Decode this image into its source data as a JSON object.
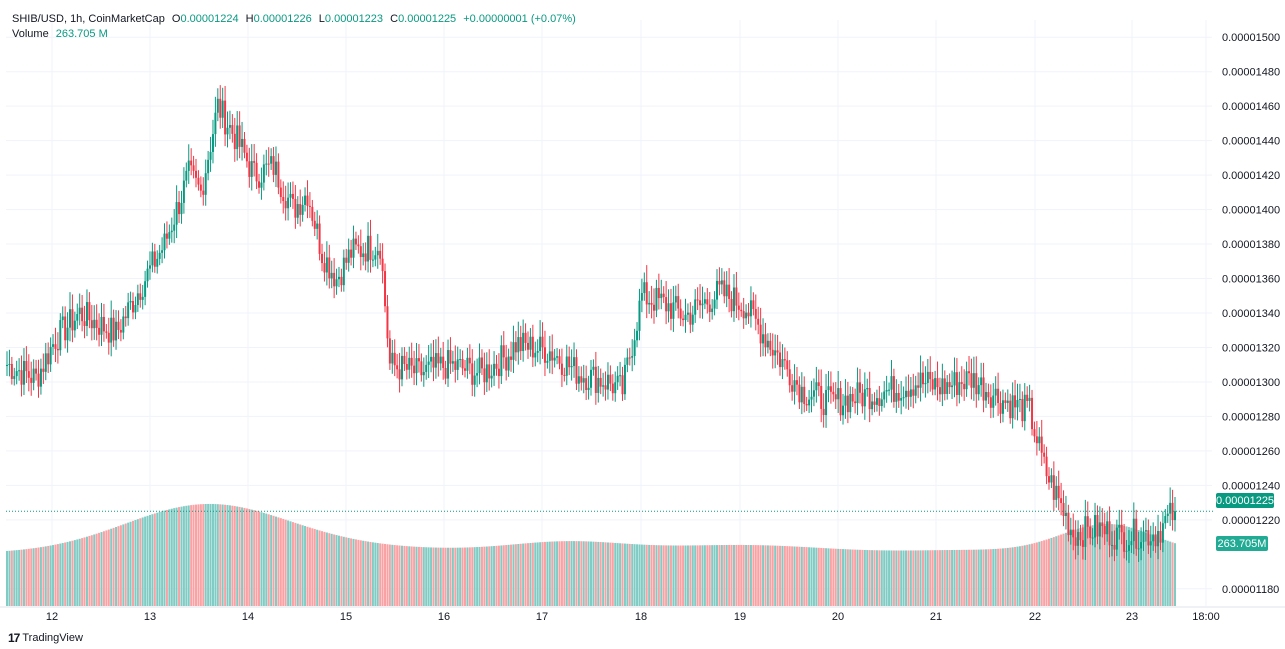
{
  "header": {
    "symbol": "SHIB/USD, 1h, CoinMarketCap",
    "open_label": "O",
    "open": "0.00001224",
    "high_label": "H",
    "high": "0.00001226",
    "low_label": "L",
    "low": "0.00001223",
    "close_label": "C",
    "close": "0.00001225",
    "change": "+0.00000001 (+0.07%)",
    "volume_label": "Volume",
    "volume": "263.705 M"
  },
  "badges": {
    "price": "0.00001225",
    "volume": "263.705M"
  },
  "brand": {
    "name": "TradingView"
  },
  "colors": {
    "up": "#089981",
    "down": "#f23645",
    "vol_up": "#80cbc4",
    "vol_down": "#faa1a4",
    "grid": "#f0f3fa"
  },
  "chart_data": {
    "type": "candlestick",
    "y_axis": {
      "min": 1.17e-05,
      "max": 1.51e-05,
      "ticks": [
        "0.00001500",
        "0.00001480",
        "0.00001460",
        "0.00001440",
        "0.00001420",
        "0.00001400",
        "0.00001380",
        "0.00001360",
        "0.00001340",
        "0.00001320",
        "0.00001300",
        "0.00001280",
        "0.00001260",
        "0.00001240",
        "0.00001220",
        "0.00001180"
      ]
    },
    "x_axis": {
      "ticks": [
        "12",
        "13",
        "14",
        "15",
        "16",
        "17",
        "18",
        "19",
        "20",
        "21",
        "22",
        "23",
        "18:00"
      ]
    },
    "last_close": 1.225e-05,
    "key_points": [
      [
        0,
        1.31e-05
      ],
      [
        12,
        1.302e-05
      ],
      [
        20,
        1.325e-05
      ],
      [
        30,
        1.34e-05
      ],
      [
        45,
        1.328e-05
      ],
      [
        55,
        1.355e-05
      ],
      [
        65,
        1.38e-05
      ],
      [
        75,
        1.42e-05
      ],
      [
        80,
        1.41e-05
      ],
      [
        87,
        1.46e-05
      ],
      [
        95,
        1.44e-05
      ],
      [
        102,
        1.42e-05
      ],
      [
        110,
        1.425e-05
      ],
      [
        118,
        1.4e-05
      ],
      [
        124,
        1.41e-05
      ],
      [
        130,
        1.375e-05
      ],
      [
        136,
        1.36e-05
      ],
      [
        142,
        1.375e-05
      ],
      [
        154,
        1.38e-05
      ],
      [
        158,
        1.31e-05
      ],
      [
        170,
        1.305e-05
      ],
      [
        182,
        1.31e-05
      ],
      [
        196,
        1.305e-05
      ],
      [
        206,
        1.315e-05
      ],
      [
        210,
        1.322e-05
      ],
      [
        224,
        1.318e-05
      ],
      [
        236,
        1.305e-05
      ],
      [
        248,
        1.3e-05
      ],
      [
        254,
        1.295e-05
      ],
      [
        262,
        1.35e-05
      ],
      [
        272,
        1.345e-05
      ],
      [
        280,
        1.338e-05
      ],
      [
        294,
        1.352e-05
      ],
      [
        304,
        1.345e-05
      ],
      [
        316,
        1.32e-05
      ],
      [
        328,
        1.295e-05
      ],
      [
        340,
        1.288e-05
      ],
      [
        352,
        1.292e-05
      ],
      [
        364,
        1.295e-05
      ],
      [
        376,
        1.3e-05
      ],
      [
        386,
        1.297e-05
      ],
      [
        398,
        1.302e-05
      ],
      [
        410,
        1.29e-05
      ],
      [
        422,
        1.283e-05
      ],
      [
        428,
        1.25e-05
      ],
      [
        436,
        1.225e-05
      ],
      [
        440,
        1.212e-05
      ],
      [
        450,
        1.215e-05
      ],
      [
        460,
        1.21e-05
      ],
      [
        466,
        1.212e-05
      ],
      [
        474,
        1.212e-05
      ],
      [
        482,
        1.225e-05
      ]
    ]
  }
}
